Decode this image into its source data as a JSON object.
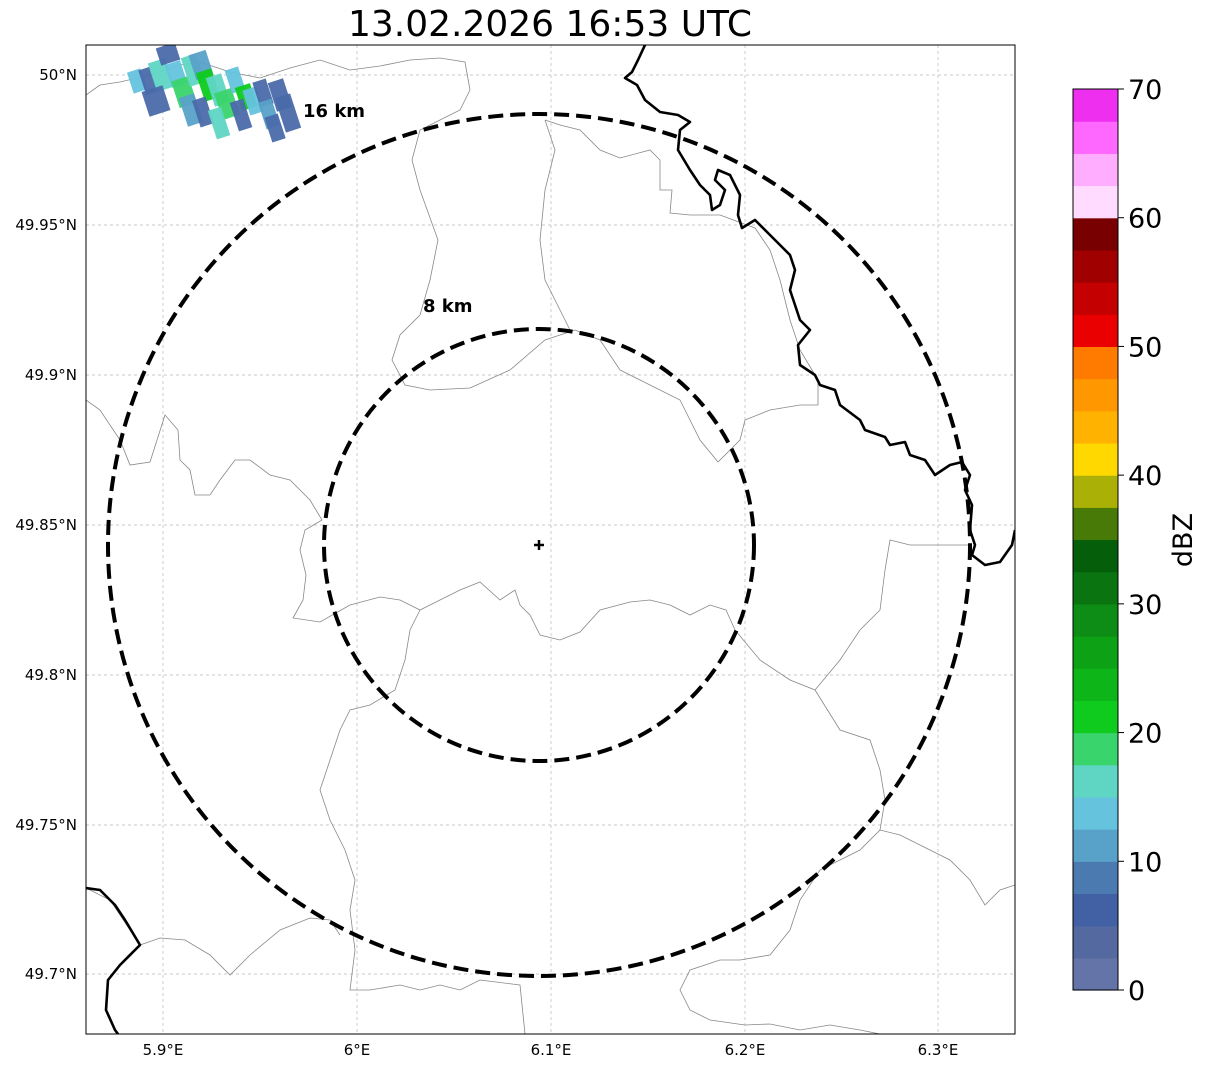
{
  "title": "13.02.2026 16:53 UTC",
  "map": {
    "lon_ticks": [
      "5.9°E",
      "6°E",
      "6.1°E",
      "6.2°E",
      "6.3°E"
    ],
    "lat_ticks": [
      "50°N",
      "49.95°N",
      "49.9°N",
      "49.85°N",
      "49.8°N",
      "49.75°N",
      "49.7°N"
    ],
    "rings": [
      {
        "label": "8 km",
        "radius_km": 8
      },
      {
        "label": "16 km",
        "radius_km": 16
      }
    ],
    "radar_site": {
      "lon": 6.095,
      "lat": 49.843
    }
  },
  "colorbar": {
    "label": "dBZ",
    "ticks": [
      "0",
      "10",
      "20",
      "30",
      "40",
      "50",
      "60",
      "70"
    ],
    "colors": [
      "#6474a8",
      "#53699f",
      "#4260a4",
      "#4a7aaf",
      "#58a1c8",
      "#65c3dd",
      "#5fd6c4",
      "#3ad46c",
      "#0ecb1e",
      "#0db519",
      "#0da216",
      "#0d8d15",
      "#0a7510",
      "#045e0a",
      "#487a08",
      "#abb006",
      "#ffd800",
      "#ffb300",
      "#ff9800",
      "#ff7b00",
      "#ea0000",
      "#c50000",
      "#a10000",
      "#790000",
      "#ffdcff",
      "#ffaeff",
      "#ff68ff",
      "#ef2ff0"
    ]
  },
  "echo_colors": {
    "light": "#65c3dd",
    "cyan": "#5fd6c4",
    "blue": "#4a6aaa",
    "mid": "#58a1c8",
    "green": "#3ad46c",
    "bright": "#0ecb1e"
  }
}
